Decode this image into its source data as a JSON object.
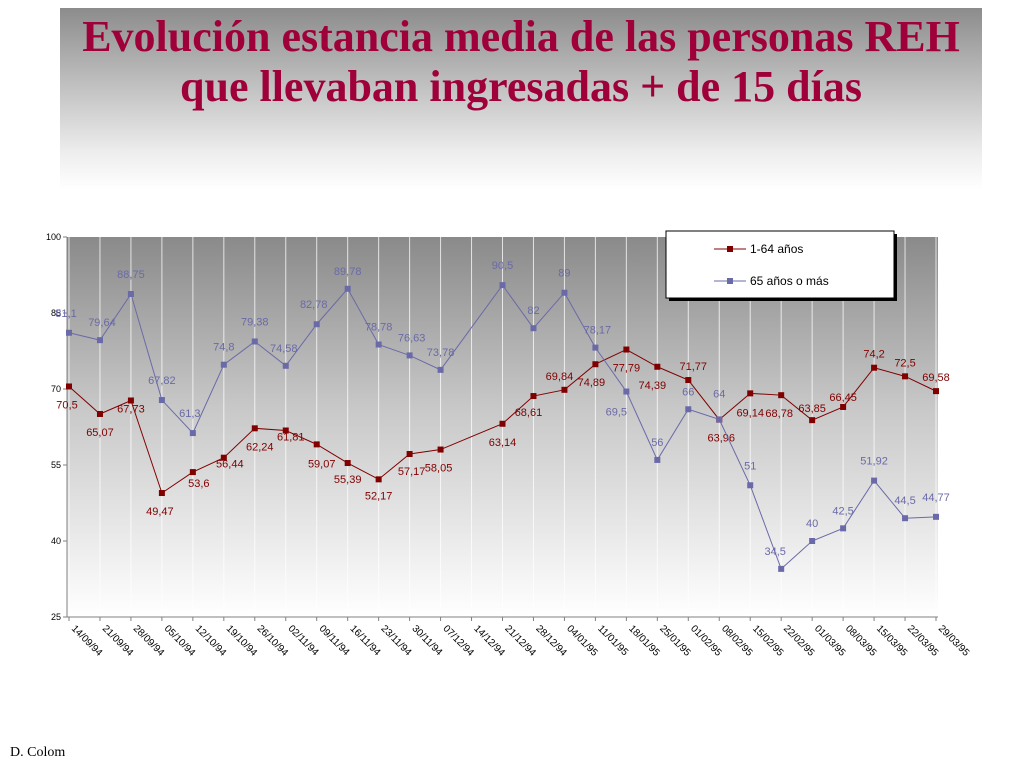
{
  "title": "Evolución estancia media de las personas REH que llevaban ingresadas + de 15 días",
  "footer": "D. Colom",
  "chart_data": {
    "type": "line",
    "categories": [
      "14/09/94",
      "21/09/94",
      "28/09/94",
      "05/10/94",
      "12/10/94",
      "19/10/94",
      "26/10/94",
      "02/11/94",
      "09/11/94",
      "16/11/94",
      "23/11/94",
      "30/11/94",
      "07/12/94",
      "14/12/94",
      "21/12/94",
      "28/12/94",
      "04/01/95",
      "11/01/95",
      "18/01/95",
      "25/01/95",
      "01/02/95",
      "08/02/95",
      "15/02/95",
      "22/02/95",
      "01/03/95",
      "08/03/95",
      "15/03/95",
      "22/03/95",
      "29/03/95"
    ],
    "ylim": [
      25,
      100
    ],
    "yticks": [
      25,
      40,
      55,
      70,
      85,
      100
    ],
    "legend_position": "top-right",
    "grid": "vertical",
    "series": [
      {
        "name": "1-64 años",
        "color": "#800000",
        "values": [
          70.5,
          65.07,
          67.73,
          49.47,
          53.6,
          56.44,
          62.24,
          61.81,
          59.07,
          55.39,
          52.17,
          57.17,
          58.05,
          null,
          63.14,
          68.61,
          69.84,
          74.89,
          77.79,
          74.39,
          71.77,
          63.96,
          69.14,
          68.78,
          63.85,
          66.45,
          74.2,
          72.5,
          69.58
        ],
        "labels": [
          "70,5",
          "65,07",
          "67,73",
          "49,47",
          "53,6",
          "56,44",
          "62,24",
          "61,81",
          "59,07",
          "55,39",
          "52,17",
          "57,17",
          "58,05",
          "",
          "63,14",
          "68,61",
          "69,84",
          "74,89",
          "77,79",
          "74,39",
          "71,77",
          "63,96",
          "69,14",
          "68,78",
          "63,85",
          "66,45",
          "74,2",
          "72,5",
          "69,58"
        ]
      },
      {
        "name": "65 años o más",
        "color": "#6a6aa8",
        "values": [
          81.1,
          79.64,
          88.75,
          67.82,
          61.3,
          74.8,
          79.38,
          74.58,
          82.78,
          89.78,
          78.78,
          76.63,
          73.78,
          null,
          90.5,
          82,
          89,
          78.17,
          69.5,
          56,
          66,
          64,
          51,
          34.5,
          40,
          42.5,
          51.92,
          44.5,
          44.77
        ],
        "labels": [
          "81,1",
          "79,64",
          "88,75",
          "67,82",
          "61,3",
          "74,8",
          "79,38",
          "74,58",
          "82,78",
          "89,78",
          "78,78",
          "76,63",
          "73,78",
          "",
          "90,5",
          "82",
          "89",
          "78,17",
          "69,5",
          "56",
          "66",
          "64",
          "51",
          "34,5",
          "40",
          "42,5",
          "51,92",
          "44,5",
          "44,77"
        ]
      }
    ]
  }
}
